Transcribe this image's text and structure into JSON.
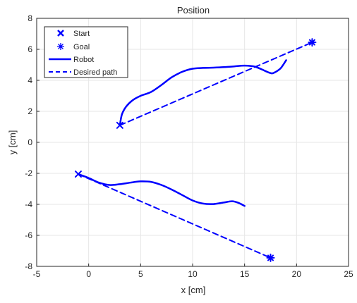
{
  "chart_data": {
    "type": "line",
    "title": "Position",
    "xlabel": "x [cm]",
    "ylabel": "y [cm]",
    "xlim": [
      -5,
      25
    ],
    "ylim": [
      -8,
      8
    ],
    "xticks": [
      -5,
      0,
      5,
      10,
      15,
      20,
      25
    ],
    "yticks": [
      -8,
      -6,
      -4,
      -2,
      0,
      2,
      4,
      6,
      8
    ],
    "grid": true,
    "legend_location": "top-left",
    "legend": [
      {
        "label": "Start",
        "style": "x-marker"
      },
      {
        "label": "Goal",
        "style": "asterisk-marker"
      },
      {
        "label": "Robot",
        "style": "solid"
      },
      {
        "label": "Desired path",
        "style": "dashed"
      }
    ],
    "color": "#0000ff",
    "series": [
      {
        "name": "Start",
        "kind": "marker",
        "symbol": "x",
        "points": [
          [
            3,
            1.1
          ],
          [
            -1,
            -2.05
          ]
        ]
      },
      {
        "name": "Goal",
        "kind": "marker",
        "symbol": "asterisk",
        "points": [
          [
            21.5,
            6.45
          ],
          [
            17.5,
            -7.45
          ]
        ]
      },
      {
        "name": "Desired path",
        "kind": "dashed",
        "segments": [
          [
            [
              3,
              1.1
            ],
            [
              21.5,
              6.45
            ]
          ],
          [
            [
              -1,
              -2.05
            ],
            [
              17.5,
              -7.45
            ]
          ]
        ]
      },
      {
        "name": "Robot",
        "kind": "solid",
        "segments": [
          [
            [
              3,
              1.1
            ],
            [
              3.2,
              1.8
            ],
            [
              3.6,
              2.3
            ],
            [
              4.2,
              2.7
            ],
            [
              5,
              3.0
            ],
            [
              6,
              3.25
            ],
            [
              7,
              3.7
            ],
            [
              8,
              4.2
            ],
            [
              9,
              4.55
            ],
            [
              10,
              4.75
            ],
            [
              11,
              4.8
            ],
            [
              12,
              4.82
            ],
            [
              13,
              4.85
            ],
            [
              14,
              4.9
            ],
            [
              15,
              4.95
            ],
            [
              16,
              4.88
            ],
            [
              17,
              4.6
            ],
            [
              17.6,
              4.45
            ],
            [
              18,
              4.55
            ],
            [
              18.5,
              4.8
            ],
            [
              19,
              5.3
            ]
          ],
          [
            [
              -1,
              -2.05
            ],
            [
              0,
              -2.3
            ],
            [
              1,
              -2.6
            ],
            [
              2,
              -2.75
            ],
            [
              3,
              -2.7
            ],
            [
              4,
              -2.6
            ],
            [
              5,
              -2.52
            ],
            [
              6,
              -2.55
            ],
            [
              7,
              -2.75
            ],
            [
              8,
              -3.05
            ],
            [
              9,
              -3.4
            ],
            [
              10,
              -3.75
            ],
            [
              11,
              -3.95
            ],
            [
              12,
              -3.98
            ],
            [
              13,
              -3.88
            ],
            [
              13.8,
              -3.8
            ],
            [
              14.4,
              -3.9
            ],
            [
              15,
              -4.1
            ]
          ]
        ]
      }
    ]
  }
}
